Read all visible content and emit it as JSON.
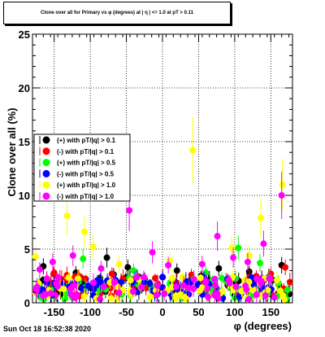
{
  "chart_data": {
    "type": "scatter",
    "title": "Clone  over all for Primary vs φ (degrees) at | η | <= 1.0 at pT > 0.11",
    "xlabel": "φ (degrees)",
    "ylabel": "Clone  over all (%)",
    "xlim": [
      -180,
      180
    ],
    "ylim": [
      0,
      25
    ],
    "xticks": [
      -150,
      -100,
      -50,
      0,
      50,
      100,
      150
    ],
    "yticks": [
      0,
      5,
      10,
      15,
      20,
      25
    ],
    "grid": true,
    "legend_position": "left",
    "series": [
      {
        "name": "(+) with pT/|q| > 0.1",
        "color": "#000000",
        "seed": 11,
        "points": [
          [
            -165,
            3.4
          ],
          [
            -77,
            4.2
          ],
          [
            -48,
            3.3
          ],
          [
            78,
            3.2
          ],
          [
            165,
            3.5
          ],
          [
            -120,
            2.8
          ],
          [
            20,
            3.0
          ],
          [
            120,
            2.9
          ]
        ]
      },
      {
        "name": "(-) with pT/|q| > 0.1",
        "color": "#ff0000",
        "seed": 23,
        "points": [
          [
            -150,
            2.8
          ],
          [
            -70,
            2.7
          ],
          [
            40,
            2.6
          ],
          [
            150,
            2.7
          ],
          [
            170,
            3.3
          ]
        ]
      },
      {
        "name": "(+) with pT/|q| > 0.5",
        "color": "#00ff00",
        "seed": 37,
        "points": [
          [
            -110,
            4.1
          ],
          [
            105,
            5.1
          ],
          [
            135,
            3.7
          ],
          [
            -40,
            3.0
          ],
          [
            60,
            2.8
          ]
        ]
      },
      {
        "name": "(-) with pT/|q| > 0.5",
        "color": "#0000ff",
        "seed": 41,
        "points": [
          [
            -90,
            2.1
          ],
          [
            0,
            2.4
          ],
          [
            90,
            2.2
          ],
          [
            -160,
            1.9
          ]
        ]
      },
      {
        "name": "(+) with pT/|q| > 1.0",
        "color": "#ffff00",
        "seed": 53,
        "points": [
          [
            -176,
            4.3
          ],
          [
            -132,
            8.1
          ],
          [
            -108,
            6.6
          ],
          [
            -96,
            5.2
          ],
          [
            42,
            14.2
          ],
          [
            96,
            5.1
          ],
          [
            136,
            7.9
          ],
          [
            166,
            11.0
          ],
          [
            -60,
            3.6
          ],
          [
            10,
            3.9
          ],
          [
            120,
            4.4
          ]
        ]
      },
      {
        "name": "(-) with pT/|q| > 1.0",
        "color": "#ff00ff",
        "seed": 67,
        "points": [
          [
            -152,
            3.8
          ],
          [
            -124,
            4.4
          ],
          [
            -46,
            8.6
          ],
          [
            -14,
            4.7
          ],
          [
            8,
            3.5
          ],
          [
            76,
            6.2
          ],
          [
            98,
            4.2
          ],
          [
            118,
            3.8
          ],
          [
            140,
            5.5
          ],
          [
            165,
            10.0
          ],
          [
            -170,
            3.1
          ],
          [
            -85,
            3.2
          ],
          [
            55,
            3.6
          ]
        ]
      }
    ]
  },
  "footer": {
    "date": "Sun Oct 18 16:52:38 2020"
  }
}
